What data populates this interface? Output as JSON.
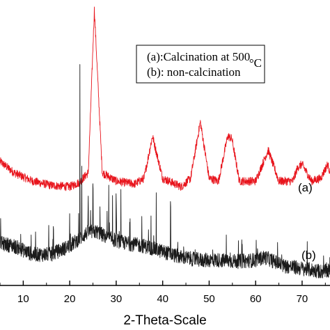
{
  "chart_data": {
    "type": "line",
    "xlabel": "2-Theta-Scale",
    "ylabel": "",
    "xlim": [
      5,
      76
    ],
    "ylim": [
      0,
      100
    ],
    "x_ticks": [
      10,
      20,
      30,
      40,
      50,
      60,
      70
    ],
    "grid": false,
    "legend": {
      "placement": "top-right",
      "entries": [
        "(a):Calcination at 500",
        "(b): non-calcination"
      ],
      "unit_suffix": "°C"
    },
    "series": [
      {
        "name": "(a)",
        "color": "#e8141c",
        "baseline": 36,
        "noise": 1.5,
        "x": [
          5,
          8,
          12,
          16,
          20,
          22,
          24,
          25.3,
          27,
          30,
          34,
          36,
          37.8,
          40,
          44,
          46,
          48.1,
          50,
          52,
          54,
          54.9,
          56.5,
          60,
          62.7,
          65,
          68,
          69.1,
          70,
          72,
          74,
          75.5,
          76
        ],
        "values": [
          44,
          40,
          37,
          35.5,
          35,
          36.5,
          40,
          98,
          40,
          37,
          36,
          38,
          53,
          38,
          35,
          38,
          58,
          38,
          37,
          53,
          52,
          37,
          37,
          48,
          37,
          37,
          42,
          43,
          37,
          38,
          43,
          40
        ]
      },
      {
        "name": "(b)",
        "color": "#1a1a1a",
        "baseline": 10,
        "noise": 2.6,
        "x": [
          5,
          8,
          12,
          16,
          20,
          24,
          26,
          28,
          32,
          36,
          40,
          44,
          48,
          52,
          56,
          60,
          62,
          66,
          70,
          74,
          76
        ],
        "values": [
          15,
          14,
          11,
          11,
          14,
          19,
          19,
          17,
          15,
          14,
          12,
          10,
          9,
          9,
          8.5,
          9,
          10,
          7,
          6,
          5,
          5
        ],
        "sharp_peaks": [
          [
            16.5,
            8
          ],
          [
            20,
            10
          ],
          [
            22.2,
            62
          ],
          [
            22.6,
            24
          ],
          [
            24,
            14
          ],
          [
            25,
            15
          ],
          [
            26.5,
            10
          ],
          [
            28.4,
            18
          ],
          [
            29.2,
            16
          ],
          [
            30,
            12
          ],
          [
            31,
            16
          ],
          [
            33,
            10
          ],
          [
            35.5,
            12
          ],
          [
            37.5,
            14
          ],
          [
            38.6,
            20
          ],
          [
            41.7,
            18
          ],
          [
            44.5,
            6
          ]
        ]
      }
    ],
    "curve_labels": [
      "(a)",
      "(b)"
    ]
  }
}
